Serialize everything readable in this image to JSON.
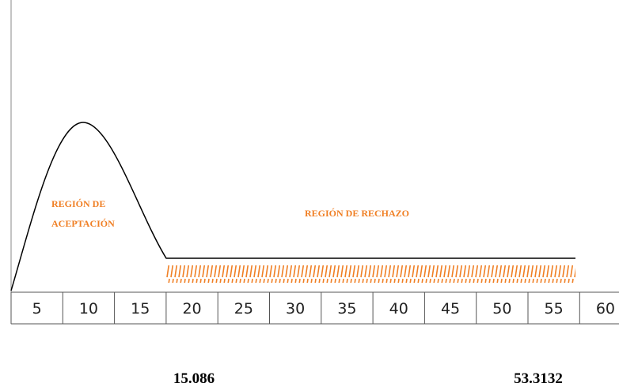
{
  "labels": {
    "acceptance": [
      "REGIÓN DE",
      "ACEPTACIÓN"
    ],
    "rejection": "REGIÓN DE RECHAZO"
  },
  "axis": [
    5,
    10,
    15,
    20,
    25,
    30,
    35,
    40,
    45,
    50,
    55,
    60
  ],
  "critical_values": [
    15.086,
    53.3132
  ]
}
